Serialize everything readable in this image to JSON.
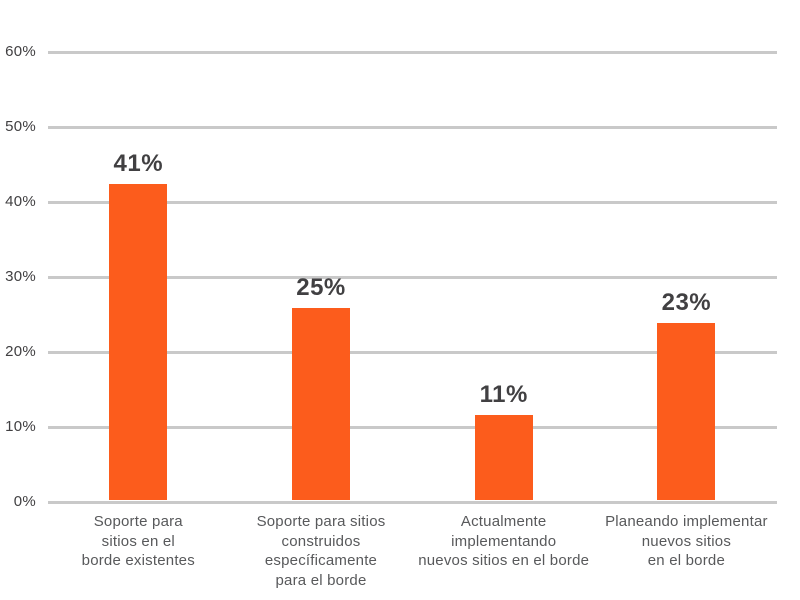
{
  "chart_data": {
    "type": "bar",
    "title": "",
    "xlabel": "",
    "ylabel": "",
    "categories": [
      "Soporte para sitios en el borde existentes",
      "Soporte para sitios construidos específicamente para el borde",
      "Actualmente implementando nuevos sitios en el borde",
      "Planeando implementar nuevos sitios en el borde"
    ],
    "category_lines": [
      [
        "Soporte para",
        "sitios en el",
        "borde existentes"
      ],
      [
        "Soporte para sitios",
        "construidos",
        "específicamente",
        "para el borde"
      ],
      [
        "Actualmente",
        "implementando",
        "nuevos sitios en el borde"
      ],
      [
        "Planeando implementar",
        "nuevos sitios",
        "en el borde"
      ]
    ],
    "values": [
      41,
      25,
      11,
      23
    ],
    "value_labels": [
      "41%",
      "25%",
      "11%",
      "23%"
    ],
    "y_ticks": [
      "0%",
      "10%",
      "20%",
      "30%",
      "40%",
      "50%",
      "60%"
    ],
    "ylim": [
      0,
      60
    ],
    "grid": true,
    "legend": "none",
    "colors": {
      "bar": "#FC5C1C",
      "value_label": "#414042",
      "tick_label": "#414042",
      "category_label": "#58595B",
      "gridline": "#C9C9C9",
      "background": "#FFFFFF"
    }
  }
}
